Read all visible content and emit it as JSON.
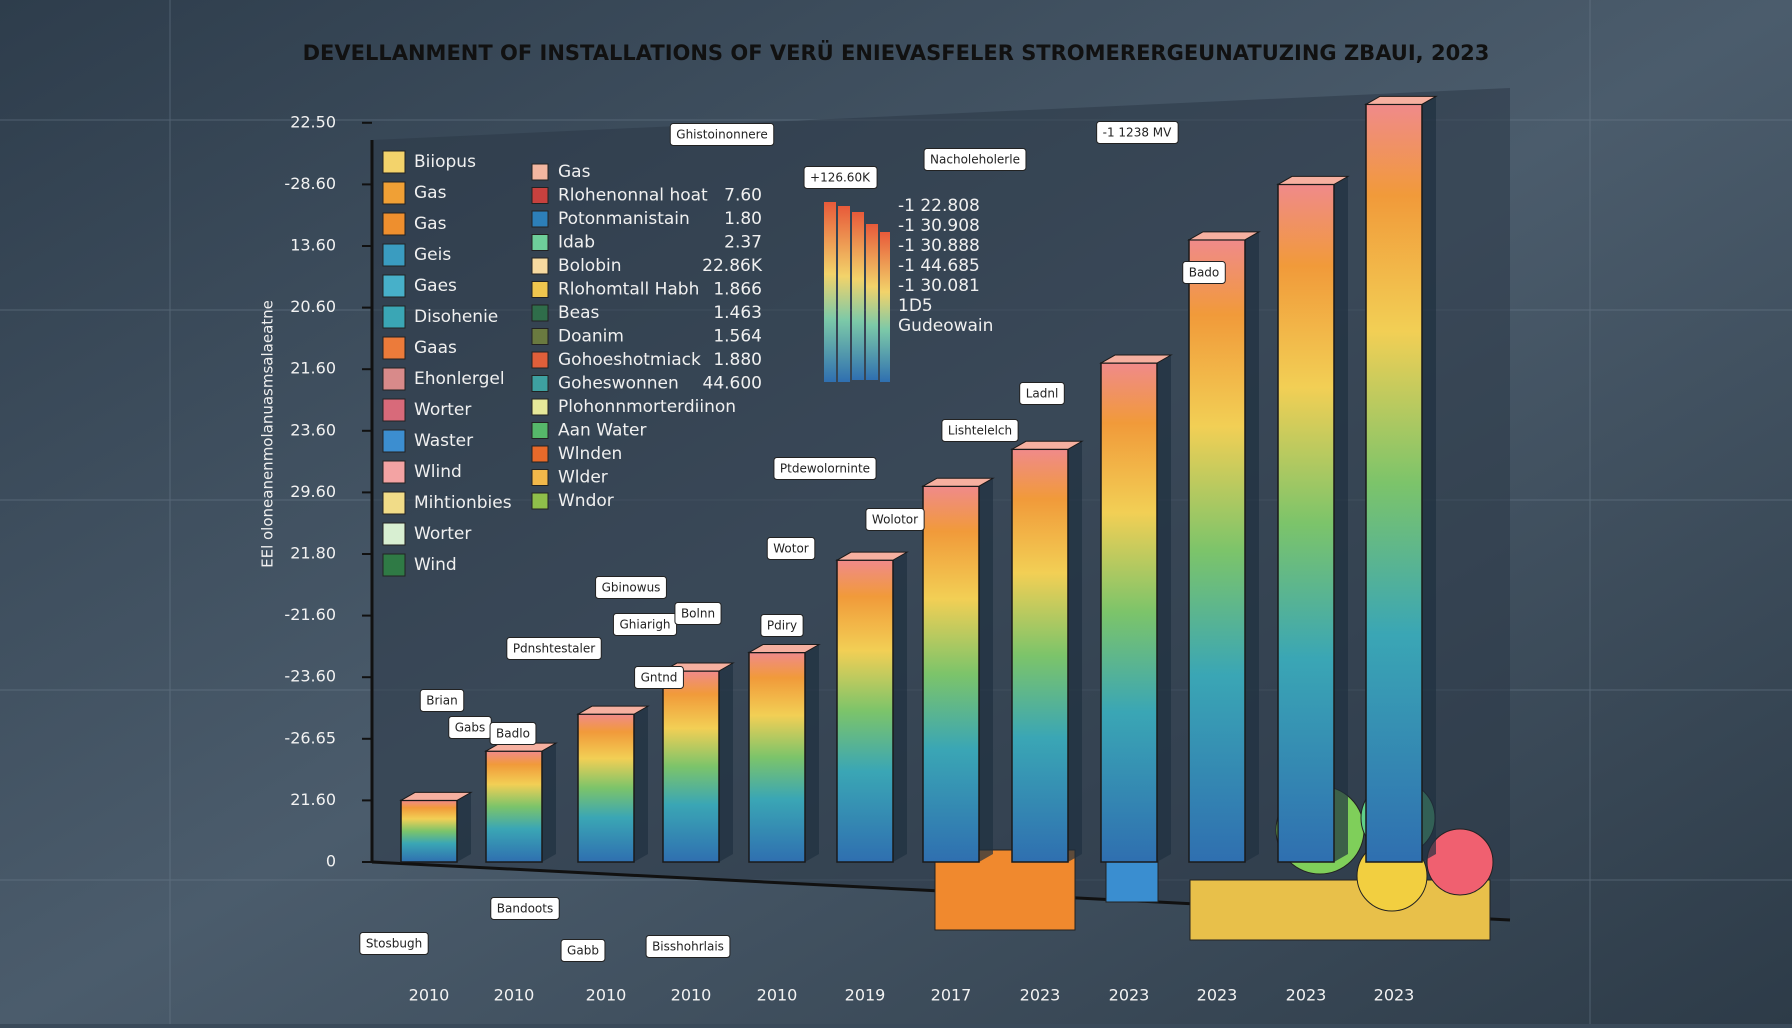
{
  "chart_data": {
    "type": "bar",
    "title": "DEVELLANMENT OF INSTALLATIONS OF VERÜ ENIEVASFELER STROMERERGEUNATUZING ZBAUI, 2023",
    "y_axis_title": "EEl oloneanenmolanuasmsalaeatne",
    "categories": [
      "2010",
      "2010",
      "2010",
      "2010",
      "2010",
      "2019",
      "2017",
      "2023",
      "2023",
      "2023",
      "2023",
      "2023"
    ],
    "values": [
      1.0,
      1.8,
      2.4,
      3.1,
      3.4,
      4.9,
      6.1,
      6.7,
      8.1,
      10.1,
      11.0,
      12.3
    ],
    "ylim": [
      0,
      12.5
    ],
    "yticks": [
      0,
      {
        "value": 1,
        "label": "21.60"
      },
      {
        "value": 2,
        "label": "-26.65"
      },
      {
        "value": 3,
        "label": "-23.60"
      },
      {
        "value": 4,
        "label": "-21.60"
      },
      {
        "value": 5,
        "label": "21.80"
      },
      {
        "value": 6,
        "label": "29.60"
      },
      {
        "value": 7,
        "label": "23.60"
      },
      {
        "value": 8,
        "label": "21.60"
      },
      {
        "value": 9,
        "label": "20.60"
      },
      {
        "value": 10,
        "label": "13.60"
      },
      {
        "value": 11,
        "label": "-28.60"
      },
      {
        "value": 12,
        "label": "22.50"
      }
    ],
    "legend": [
      {
        "name": "Biiopus",
        "color": "#f3d36b"
      },
      {
        "name": "Gas",
        "color": "#f0a035"
      },
      {
        "name": "Gas",
        "color": "#ee8f2e"
      },
      {
        "name": "Geis",
        "color": "#3a9cc0"
      },
      {
        "name": "Gaes",
        "color": "#47b0c9"
      },
      {
        "name": "Disohenie",
        "color": "#3aa6b5"
      },
      {
        "name": "Gaas",
        "color": "#ec7b3a"
      },
      {
        "name": "Ehonlergel",
        "color": "#d88a8a"
      },
      {
        "name": "Worter",
        "color": "#d86a7a"
      },
      {
        "name": "Waster",
        "color": "#3c8ed0"
      },
      {
        "name": "Wlind",
        "color": "#f3a3a3"
      },
      {
        "name": "Mihtionbies",
        "color": "#f1dc88"
      },
      {
        "name": "Worter",
        "color": "#d8efd2"
      },
      {
        "name": "Wind",
        "color": "#2f7a45"
      }
    ],
    "legend2": [
      {
        "name": "Gas",
        "value": null,
        "color": "#f2b6a0"
      },
      {
        "name": "Rlohenonnal hoat",
        "value": "7.60",
        "color": "#c8413e"
      },
      {
        "name": "Potonmanistain",
        "value": "1.80",
        "color": "#2d7fb8"
      },
      {
        "name": "Idab",
        "value": "2.37",
        "color": "#6ecf9a"
      },
      {
        "name": "Bolobin",
        "value": "22.86K",
        "color": "#f6d9a0"
      },
      {
        "name": "Rlohomtall Habh",
        "value": "1.866",
        "color": "#f0c64e"
      },
      {
        "name": "Beas",
        "value": "1.463",
        "color": "#2f6d4a"
      },
      {
        "name": "Doanim",
        "value": "1.564",
        "color": "#6a7a40"
      },
      {
        "name": "Gohoeshotmiack",
        "value": "1.880",
        "color": "#e05f3a"
      },
      {
        "name": "Goheswonnen",
        "value": "44.600",
        "color": "#3ea0a0"
      },
      {
        "name": "Plohonnmorterdiinon",
        "value": null,
        "color": "#e6e89a"
      },
      {
        "name": "Aan Water",
        "value": null,
        "color": "#56b86a"
      },
      {
        "name": "Wlnden",
        "value": null,
        "color": "#e86a2a"
      },
      {
        "name": "Wlder",
        "value": null,
        "color": "#f2b84a"
      },
      {
        "name": "Wndor",
        "value": null,
        "color": "#8fbf4a"
      }
    ],
    "mini_values": [
      "-1 22.808",
      "-1 30.908",
      "-1 30.888",
      "-1 44.685",
      "-1 30.081",
      "1D5",
      "Gudeowain"
    ],
    "annotations": [
      "Ghistoinonnere",
      "+126.60K",
      "Nacholeholerle",
      "-1 1238 MV",
      "Bado",
      "Ladnl",
      "Lishtelelch",
      "Ptdewolorninte",
      "Wolotor",
      "Wotor",
      "Gbinowus",
      "Ghiarigh",
      "Bolnn",
      "Pdiry",
      "Pdnshtestaler",
      "Gntnd",
      "Brian",
      "Gabs",
      "Badlo",
      "Stosbugh",
      "Bandoots",
      "Gabb",
      "Bisshohrlais"
    ]
  }
}
